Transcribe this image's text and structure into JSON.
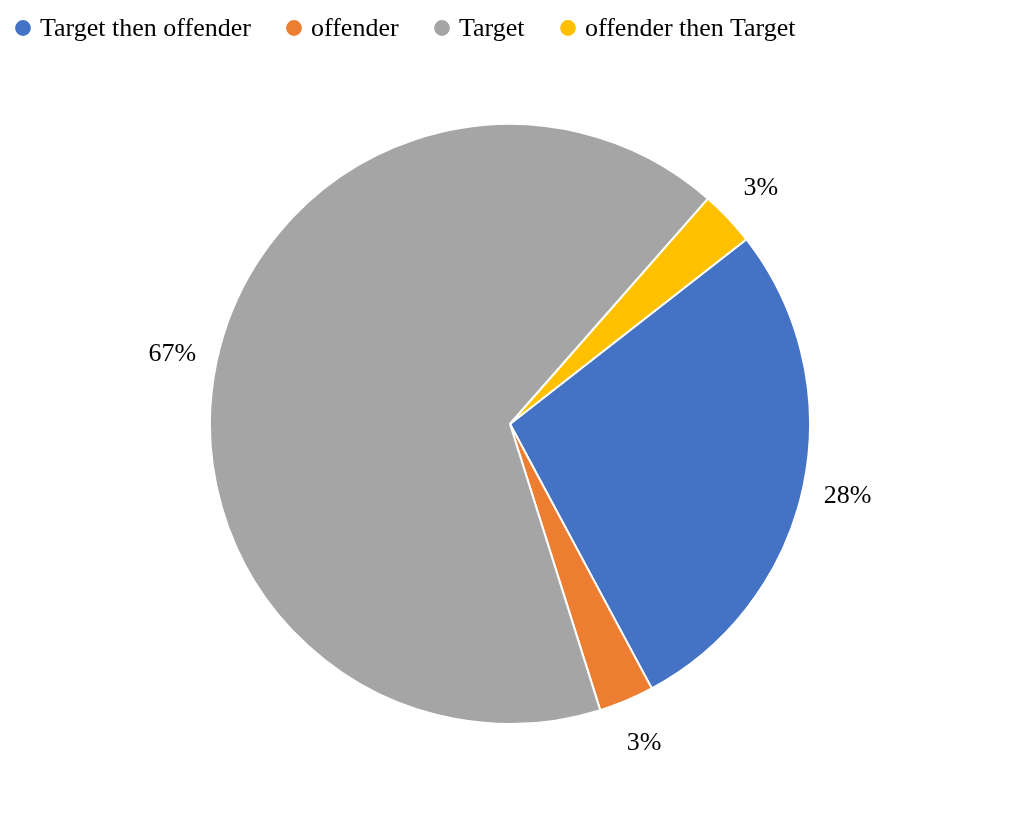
{
  "chart_data": {
    "type": "pie",
    "categories": [
      "Target then offender",
      "offender",
      "Target",
      "offender then Target"
    ],
    "values": [
      28,
      3,
      67,
      3
    ],
    "colors": [
      "#4472c4",
      "#ed7d31",
      "#a5a5a5",
      "#ffc000"
    ],
    "value_labels": [
      "28%",
      "3%",
      "67%",
      "3%"
    ],
    "legend": "top"
  }
}
